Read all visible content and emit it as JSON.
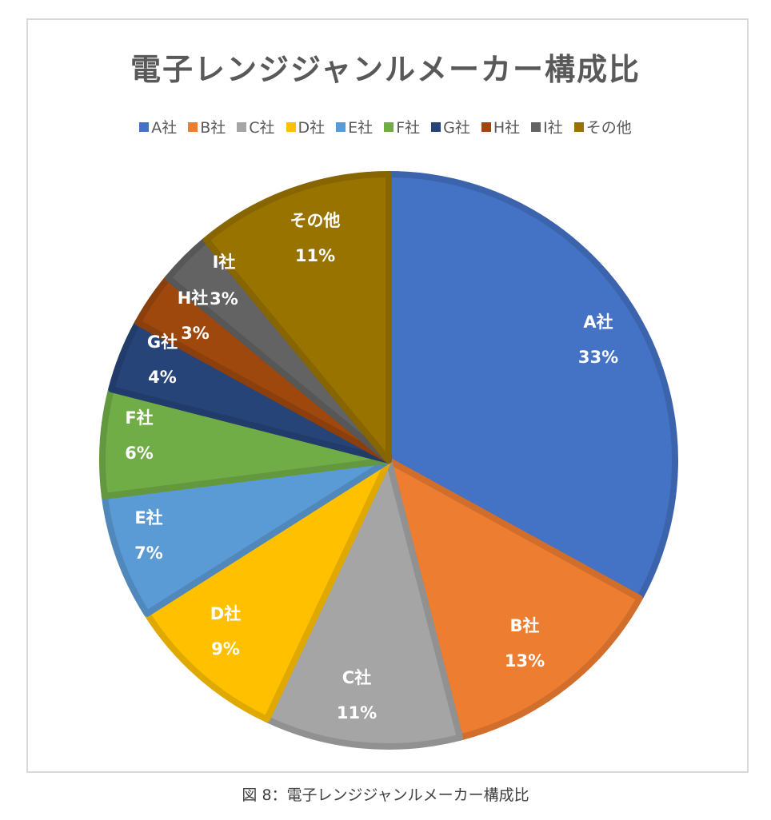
{
  "chart_data": {
    "type": "pie",
    "title": "電子レンジジャンルメーカー構成比",
    "categories": [
      "A社",
      "B社",
      "C社",
      "D社",
      "E社",
      "F社",
      "G社",
      "H社",
      "I社",
      "その他"
    ],
    "values": [
      33,
      13,
      11,
      9,
      7,
      6,
      4,
      3,
      3,
      11
    ],
    "labels": [
      "33%",
      "13%",
      "11%",
      "9%",
      "7%",
      "6%",
      "4%",
      "3%",
      "3%",
      "11%"
    ],
    "colors": [
      "#4472c4",
      "#ed7d31",
      "#a5a5a5",
      "#ffc000",
      "#5b9bd5",
      "#70ad47",
      "#264478",
      "#9e480e",
      "#636363",
      "#997300"
    ],
    "legend_position": "top",
    "start_angle": "12 o'clock, clockwise",
    "unit": "%"
  },
  "caption": "図 8：電子レンジジャンルメーカー構成比"
}
